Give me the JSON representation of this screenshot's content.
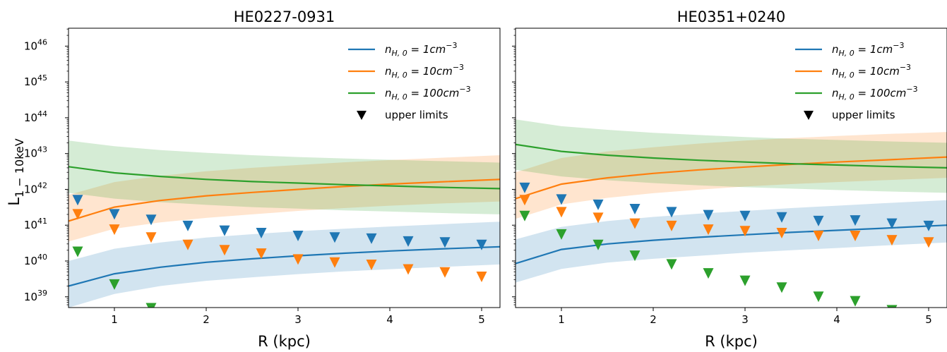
{
  "chart_data": [
    {
      "type": "line",
      "title": "HE0227-0931",
      "xlabel": "R (kpc)",
      "ylabel_main": "L",
      "ylabel_sub": "1 − 10keV",
      "xlim": [
        0.5,
        5.2
      ],
      "ylim_log10": [
        38.7,
        46.5
      ],
      "log_y": true,
      "xticks": [
        "1",
        "2",
        "3",
        "4",
        "5"
      ],
      "yticks": [
        {
          "exp": "39",
          "label_base": "10"
        },
        {
          "exp": "40",
          "label_base": "10"
        },
        {
          "exp": "41",
          "label_base": "10"
        },
        {
          "exp": "42",
          "label_base": "10"
        },
        {
          "exp": "43",
          "label_base": "10"
        },
        {
          "exp": "44",
          "label_base": "10"
        },
        {
          "exp": "45",
          "label_base": "10"
        },
        {
          "exp": "46",
          "label_base": "10"
        }
      ],
      "legend_position": "top-right",
      "series": [
        {
          "label_prefix": "n",
          "label_sub": "H, 0",
          "label_eq": " = ",
          "label_val": "1cm",
          "label_exp": "−3",
          "color": "#1f77b4",
          "curve": {
            "x": [
              0.5,
              1.0,
              1.5,
              2.0,
              2.5,
              3.0,
              3.5,
              4.0,
              4.5,
              5.2
            ],
            "y": [
              2e+39,
              4.4e+39,
              6.7e+39,
              9.2e+39,
              1.15e+40,
              1.4e+40,
              1.65e+40,
              1.9e+40,
              2.15e+40,
              2.5e+40
            ]
          },
          "band": {
            "low": [
              5e+38,
              1.2e+39,
              2e+39,
              2.8e+39,
              3.5e+39,
              4.3e+39,
              5.1e+39,
              5.9e+39,
              6.7e+39,
              8e+39
            ],
            "high": [
              1e+40,
              2.2e+40,
              3.3e+40,
              4.5e+40,
              5.6e+40,
              6.8e+40,
              8e+40,
              9.2e+40,
              1.05e+41,
              1.25e+41
            ]
          },
          "upper_limits": {
            "x": [
              0.6,
              1.0,
              1.4,
              1.8,
              2.2,
              2.6,
              3.0,
              3.4,
              3.8,
              4.2,
              4.6,
              5.0
            ],
            "y": [
              5e+41,
              2e+41,
              1.4e+41,
              9.5e+40,
              7e+40,
              6e+40,
              5e+40,
              4.5e+40,
              4.2e+40,
              3.5e+40,
              3.3e+40,
              2.8e+40
            ]
          }
        },
        {
          "label_prefix": "n",
          "label_sub": "H, 0",
          "label_eq": " = ",
          "label_val": "10cm",
          "label_exp": "−3",
          "color": "#ff7f0e",
          "curve": {
            "x": [
              0.5,
              1.0,
              1.5,
              2.0,
              2.5,
              3.0,
              3.5,
              4.0,
              4.5,
              5.2
            ],
            "y": [
              1.3e+41,
              3.2e+41,
              4.9e+41,
              6.6e+41,
              8.2e+41,
              1e+42,
              1.2e+42,
              1.4e+42,
              1.6e+42,
              1.9e+42
            ]
          },
          "band": {
            "low": [
              3.5e+40,
              8e+40,
              1.2e+41,
              1.6e+41,
              2e+41,
              2.5e+41,
              3e+41,
              3.5e+41,
              4e+41,
              4.6e+41
            ],
            "high": [
              7e+41,
              1.6e+42,
              2.4e+42,
              3.2e+42,
              4e+42,
              4.8e+42,
              5.7e+42,
              6.6e+42,
              7.5e+42,
              9e+42
            ]
          },
          "upper_limits": {
            "x": [
              0.6,
              1.0,
              1.4,
              1.8,
              2.2,
              2.6,
              3.0,
              3.4,
              3.8,
              4.2,
              4.6,
              5.0
            ],
            "y": [
              2e+41,
              7.5e+40,
              4.5e+40,
              2.8e+40,
              2e+40,
              1.6e+40,
              1.1e+40,
              9e+39,
              7.8e+39,
              5.8e+39,
              4.8e+39,
              3.6e+39
            ]
          }
        },
        {
          "label_prefix": "n",
          "label_sub": "H, 0",
          "label_eq": " = ",
          "label_val": "100cm",
          "label_exp": "−3",
          "color": "#2ca02c",
          "curve": {
            "x": [
              0.5,
              1.0,
              1.5,
              2.0,
              2.5,
              3.0,
              3.5,
              4.0,
              4.5,
              5.2
            ],
            "y": [
              4.3e+42,
              2.9e+42,
              2.3e+42,
              1.9e+42,
              1.65e+42,
              1.5e+42,
              1.35e+42,
              1.25e+42,
              1.15e+42,
              1.05e+42
            ]
          },
          "band": {
            "low": [
              8e+41,
              5.5e+41,
              4.4e+41,
              3.7e+41,
              3.2e+41,
              2.9e+41,
              2.6e+41,
              2.4e+41,
              2.2e+41,
              2e+41
            ],
            "high": [
              2.3e+43,
              1.6e+43,
              1.25e+43,
              1.05e+43,
              9e+42,
              8e+42,
              7.3e+42,
              6.7e+42,
              6.2e+42,
              5.6e+42
            ]
          },
          "upper_limits": {
            "x": [
              0.6,
              1.0,
              1.4
            ],
            "y": [
              1.8e+40,
              2.2e+39,
              4.8e+38
            ]
          }
        }
      ],
      "upper_limits_label": "upper limits",
      "upper_limits_marker_color": "#000000"
    },
    {
      "type": "line",
      "title": "HE0351+0240",
      "xlabel": "R (kpc)",
      "xlim": [
        0.5,
        5.2
      ],
      "ylim_log10": [
        38.7,
        46.5
      ],
      "log_y": true,
      "xticks": [
        "1",
        "2",
        "3",
        "4",
        "5"
      ],
      "legend_position": "top-right",
      "series": [
        {
          "label_prefix": "n",
          "label_sub": "H, 0",
          "label_eq": " = ",
          "label_val": "1cm",
          "label_exp": "−3",
          "color": "#1f77b4",
          "curve": {
            "x": [
              0.5,
              1.0,
              1.5,
              2.0,
              2.5,
              3.0,
              3.5,
              4.0,
              4.5,
              5.2
            ],
            "y": [
              8.5e+39,
              2.1e+40,
              3e+40,
              3.8e+40,
              4.6e+40,
              5.4e+40,
              6.3e+40,
              7.2e+40,
              8.2e+40,
              1e+41
            ]
          },
          "band": {
            "low": [
              2.5e+39,
              6e+39,
              9e+39,
              1.15e+40,
              1.4e+40,
              1.7e+40,
              2e+40,
              2.3e+40,
              2.7e+40,
              3.3e+40
            ],
            "high": [
              4e+40,
              9e+40,
              1.3e+41,
              1.7e+41,
              2.1e+41,
              2.5e+41,
              3e+41,
              3.5e+41,
              4.1e+41,
              5e+41
            ]
          },
          "upper_limits": {
            "x": [
              0.6,
              1.0,
              1.4,
              1.8,
              2.2,
              2.6,
              3.0,
              3.4,
              3.8,
              4.2,
              4.6,
              5.0
            ],
            "y": [
              1.1e+42,
              5.2e+41,
              3.7e+41,
              2.8e+41,
              2.3e+41,
              1.9e+41,
              1.8e+41,
              1.65e+41,
              1.3e+41,
              1.35e+41,
              1.1e+41,
              9.5e+40
            ]
          }
        },
        {
          "label_prefix": "n",
          "label_sub": "H, 0",
          "label_eq": " = ",
          "label_val": "10cm",
          "label_exp": "−3",
          "color": "#ff7f0e",
          "curve": {
            "x": [
              0.5,
              1.0,
              1.5,
              2.0,
              2.5,
              3.0,
              3.5,
              4.0,
              4.5,
              5.2
            ],
            "y": [
              5.5e+41,
              1.4e+42,
              2.1e+42,
              2.8e+42,
              3.5e+42,
              4.2e+42,
              5e+42,
              5.8e+42,
              6.6e+42,
              8e+42
            ]
          },
          "band": {
            "low": [
              1.5e+41,
              3.8e+41,
              5.8e+41,
              7.8e+41,
              9.8e+41,
              1.2e+42,
              1.4e+42,
              1.6e+42,
              1.8e+42,
              2.1e+42
            ],
            "high": [
              3e+42,
              7.5e+42,
              1.15e+43,
              1.5e+43,
              1.9e+43,
              2.3e+43,
              2.7e+43,
              3.1e+43,
              3.5e+43,
              4e+43
            ]
          },
          "upper_limits": {
            "x": [
              0.6,
              1.0,
              1.4,
              1.8,
              2.2,
              2.6,
              3.0,
              3.4,
              3.8,
              4.2,
              4.6,
              5.0
            ],
            "y": [
              5e+41,
              2.3e+41,
              1.6e+41,
              1.1e+41,
              9.5e+40,
              7.5e+40,
              6.8e+40,
              6e+40,
              5e+40,
              5e+40,
              3.8e+40,
              3.3e+40
            ]
          }
        },
        {
          "label_prefix": "n",
          "label_sub": "H, 0",
          "label_eq": " = ",
          "label_val": "100cm",
          "label_exp": "−3",
          "color": "#2ca02c",
          "curve": {
            "x": [
              0.5,
              1.0,
              1.5,
              2.0,
              2.5,
              3.0,
              3.5,
              4.0,
              4.5,
              5.2
            ],
            "y": [
              1.8e+43,
              1.15e+43,
              9e+42,
              7.5e+42,
              6.5e+42,
              5.8e+42,
              5.2e+42,
              4.8e+42,
              4.4e+42,
              4e+42
            ]
          },
          "band": {
            "low": [
              3.5e+42,
              2.3e+42,
              1.8e+42,
              1.5e+42,
              1.3e+42,
              1.15e+42,
              1.05e+42,
              9.6e+41,
              8.8e+41,
              8e+41
            ],
            "high": [
              9e+43,
              5.8e+43,
              4.6e+43,
              3.8e+43,
              3.3e+43,
              2.9e+43,
              2.6e+43,
              2.4e+43,
              2.2e+43,
              2e+43
            ]
          },
          "upper_limits": {
            "x": [
              0.6,
              1.0,
              1.4,
              1.8,
              2.2,
              2.6,
              3.0,
              3.4,
              3.8,
              4.2,
              4.6
            ],
            "y": [
              1.8e+41,
              5.5e+40,
              2.8e+40,
              1.4e+40,
              8e+39,
              4.5e+39,
              2.8e+39,
              1.8e+39,
              1e+39,
              7.5e+38,
              4.2e+38
            ]
          }
        }
      ],
      "upper_limits_label": "upper limits",
      "upper_limits_marker_color": "#000000"
    }
  ]
}
